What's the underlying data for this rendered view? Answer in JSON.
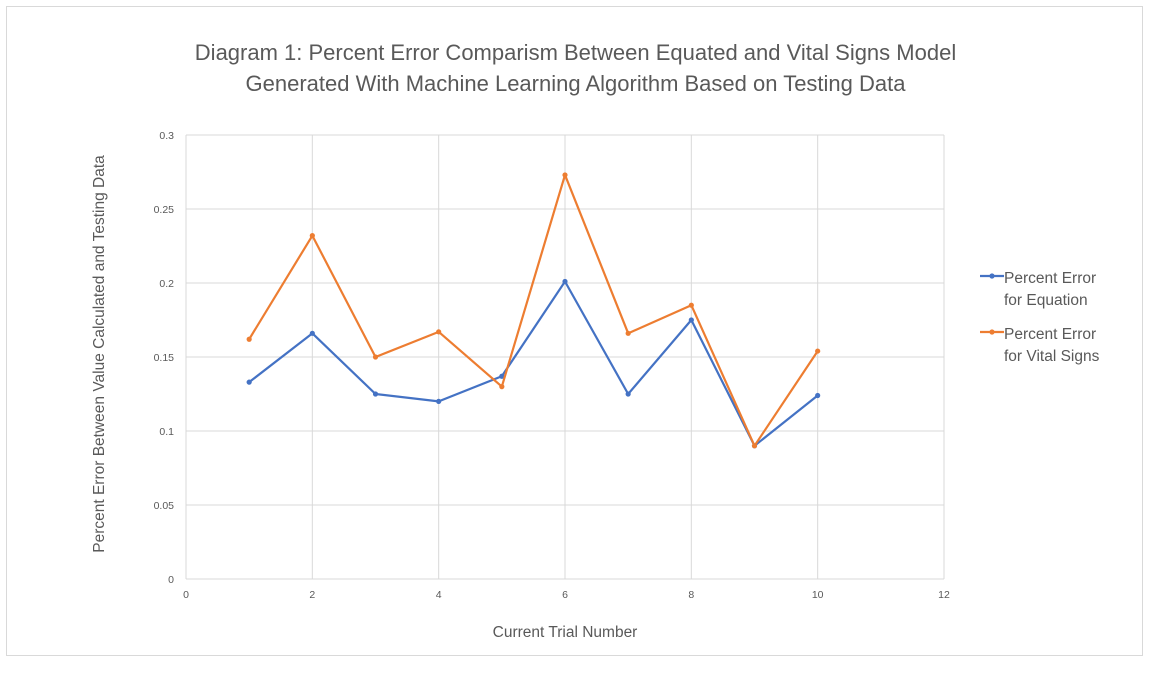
{
  "chart_data": {
    "type": "scatter",
    "title_line1": "Diagram 1: Percent Error Comparism Between Equated and Vital Signs Model",
    "title_line2": "Generated With Machine Learning Algorithm Based on Testing Data",
    "xlabel": "Current Trial Number",
    "ylabel": "Percent Error Between Value Calculated and Testing Data",
    "xlim": [
      0,
      12
    ],
    "ylim": [
      0,
      0.3
    ],
    "xticks": [
      "0",
      "2",
      "4",
      "6",
      "8",
      "10",
      "12"
    ],
    "yticks": [
      "0",
      "0.05",
      "0.1",
      "0.15",
      "0.2",
      "0.25",
      "0.3"
    ],
    "grid": true,
    "legend_position": "right",
    "x": [
      1,
      2,
      3,
      4,
      5,
      6,
      7,
      8,
      9,
      10
    ],
    "series": [
      {
        "name_line1": "Percent Error",
        "name_line2": "for Equation",
        "color": "#4472c4",
        "values": [
          0.133,
          0.166,
          0.125,
          0.12,
          0.137,
          0.201,
          0.125,
          0.175,
          0.09,
          0.124
        ]
      },
      {
        "name_line1": "Percent Error",
        "name_line2": "for Vital Signs",
        "color": "#ed7d31",
        "values": [
          0.162,
          0.232,
          0.15,
          0.167,
          0.13,
          0.273,
          0.166,
          0.185,
          0.09,
          0.154
        ]
      }
    ]
  }
}
